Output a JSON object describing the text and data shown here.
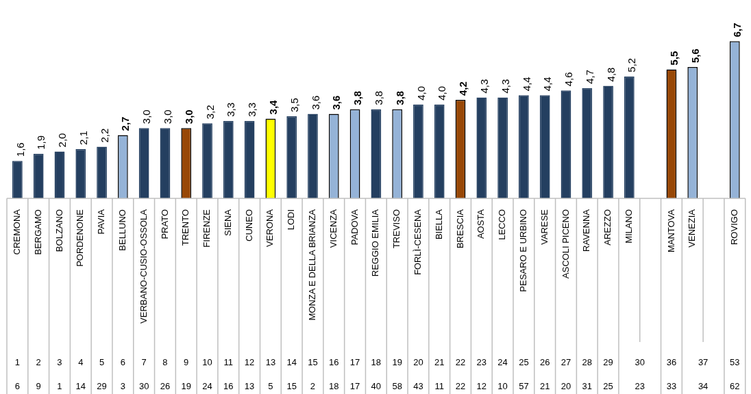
{
  "chart_data": {
    "type": "bar",
    "categories": [
      "CREMONA",
      "BERGAMO",
      "BOLZANO",
      "PORDENONE",
      "PAVIA",
      "BELLUNO",
      "VERBANO-CUSIO-OSSOLA",
      "PRATO",
      "TRENTO",
      "FIRENZE",
      "SIENA",
      "CUNEO",
      "VERONA",
      "LODI",
      "MONZA E DELLA BRIANZA",
      "VICENZA",
      "PADOVA",
      "REGGIO EMILIA",
      "TREVISO",
      "FORLÌ-CESENA",
      "BIELLA",
      "BRESCIA",
      "AOSTA",
      "LECCO",
      "PESARO E URBINO",
      "VARESE",
      "ASCOLI PICENO",
      "RAVENNA",
      "AREZZO",
      "MILANO",
      null,
      "MANTOVA",
      "VENEZIA",
      null,
      "ROVIGO"
    ],
    "values": [
      1.6,
      1.9,
      2.0,
      2.1,
      2.2,
      2.7,
      3.0,
      3.0,
      3.0,
      3.2,
      3.3,
      3.3,
      3.4,
      3.5,
      3.6,
      3.6,
      3.8,
      3.8,
      3.8,
      4.0,
      4.0,
      4.2,
      4.3,
      4.3,
      4.4,
      4.4,
      4.6,
      4.7,
      4.8,
      5.2,
      null,
      5.5,
      5.6,
      null,
      6.7
    ],
    "value_labels": [
      "1,6",
      "1,9",
      "2,0",
      "2,1",
      "2,2",
      "2,7",
      "3,0",
      "3,0",
      "3,0",
      "3,2",
      "3,3",
      "3,3",
      "3,4",
      "3,5",
      "3,6",
      "3,6",
      "3,8",
      "3,8",
      "3,8",
      "4,0",
      "4,0",
      "4,2",
      "4,3",
      "4,3",
      "4,4",
      "4,4",
      "4,6",
      "4,7",
      "4,8",
      "5,2",
      null,
      "5,5",
      "5,6",
      null,
      "6,7"
    ],
    "colors": [
      "#243f60",
      "#243f60",
      "#243f60",
      "#243f60",
      "#243f60",
      "#95b3d7",
      "#243f60",
      "#243f60",
      "#984807",
      "#243f60",
      "#243f60",
      "#243f60",
      "#ffff00",
      "#243f60",
      "#243f60",
      "#95b3d7",
      "#95b3d7",
      "#243f60",
      "#95b3d7",
      "#243f60",
      "#243f60",
      "#984807",
      "#243f60",
      "#243f60",
      "#243f60",
      "#243f60",
      "#243f60",
      "#243f60",
      "#243f60",
      "#243f60",
      "#243f60",
      "#984807",
      "#95b3d7",
      "#243f60",
      "#95b3d7"
    ],
    "annotations": [
      "1 2 3 4 5 6 7 8 9 10 11 12 13 14 15 16 17 18 19 20 21 22 23 24 25 26 27 28 29 30 36 37 53",
      "6 9 1 14 29 3 30 26 19 24 16 13 5 15 2 18 17 40 58 43 11 22 12 10 57 21 20 31 25 23 33 34 62"
    ],
    "legend": false,
    "grid": false
  }
}
